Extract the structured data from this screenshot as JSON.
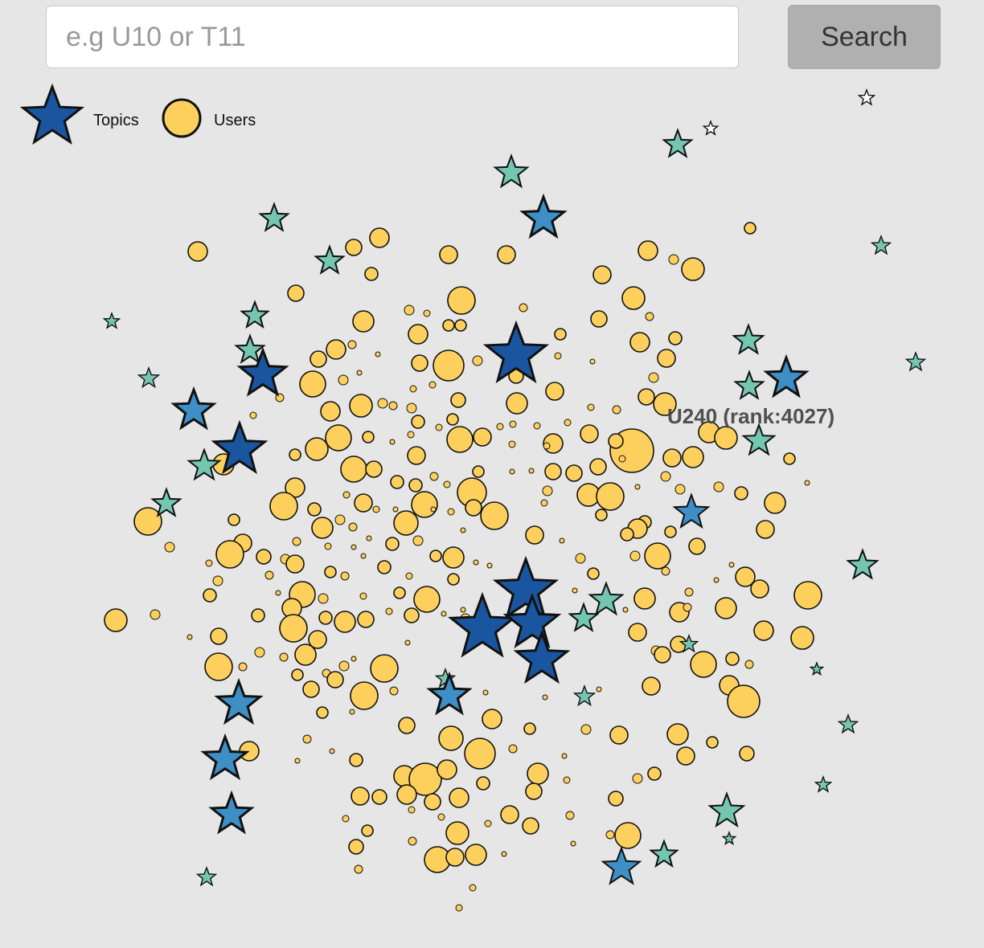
{
  "search": {
    "placeholder": "e.g U10 or T11",
    "button_label": "Search"
  },
  "legend": {
    "topics_label": "Topics",
    "users_label": "Users"
  },
  "hover_label": "U240 (rank:4027)",
  "colors": {
    "background": "#e6e6e6",
    "user_fill": "#fdd05e",
    "topic_dark": "#1a55a0",
    "topic_mid": "#3d8fc6",
    "topic_light": "#74c6b1",
    "stroke": "#111111"
  },
  "icons": {
    "topic": "star-icon",
    "user": "circle-icon"
  }
}
